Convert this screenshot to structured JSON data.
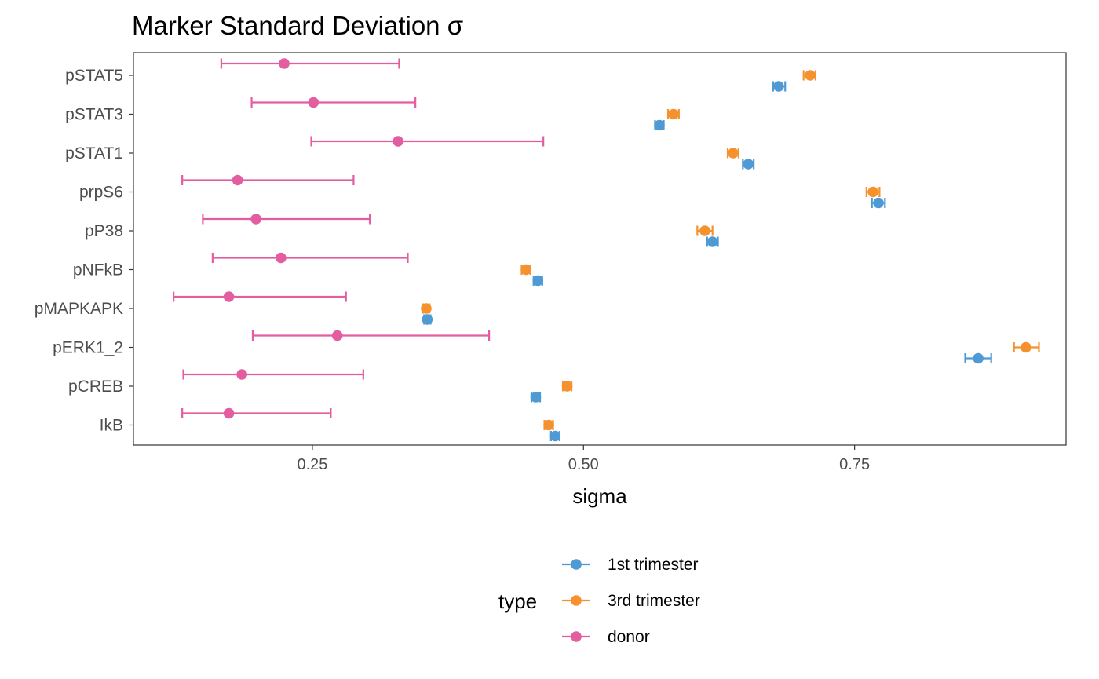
{
  "chart_data": {
    "type": "scatter",
    "title": "Marker Standard Deviation σ",
    "xlabel": "sigma",
    "ylabel": "",
    "xlim": [
      0.085,
      0.945
    ],
    "xticks": [
      0.25,
      0.5,
      0.75
    ],
    "xtick_labels": [
      "0.25",
      "0.50",
      "0.75"
    ],
    "categories": [
      "pSTAT5",
      "pSTAT3",
      "pSTAT1",
      "prpS6",
      "pP38",
      "pNFkB",
      "pMAPKAPK",
      "pERK1_2",
      "pCREB",
      "IkB"
    ],
    "grid": false,
    "legend_position": "bottom",
    "legend_title": "type",
    "series": [
      {
        "name": "1st trimester",
        "color": "#4e9ad5",
        "values": [
          0.68,
          0.57,
          0.652,
          0.772,
          0.619,
          0.458,
          0.356,
          0.864,
          0.456,
          0.474
        ],
        "lower": [
          0.675,
          0.566,
          0.647,
          0.766,
          0.614,
          0.454,
          0.353,
          0.852,
          0.452,
          0.47
        ],
        "upper": [
          0.686,
          0.574,
          0.657,
          0.778,
          0.624,
          0.462,
          0.359,
          0.876,
          0.46,
          0.478
        ]
      },
      {
        "name": "3rd trimester",
        "color": "#f5922e",
        "values": [
          0.709,
          0.583,
          0.638,
          0.767,
          0.612,
          0.447,
          0.355,
          0.908,
          0.485,
          0.468
        ],
        "lower": [
          0.703,
          0.578,
          0.633,
          0.761,
          0.605,
          0.443,
          0.352,
          0.897,
          0.481,
          0.464
        ],
        "upper": [
          0.714,
          0.588,
          0.643,
          0.773,
          0.619,
          0.451,
          0.358,
          0.92,
          0.489,
          0.472
        ]
      },
      {
        "name": "donor",
        "color": "#e35ea1",
        "values": [
          0.224,
          0.251,
          0.329,
          0.181,
          0.198,
          0.221,
          0.173,
          0.273,
          0.185,
          0.173
        ],
        "lower": [
          0.166,
          0.194,
          0.249,
          0.13,
          0.149,
          0.158,
          0.122,
          0.195,
          0.131,
          0.13
        ],
        "upper": [
          0.33,
          0.345,
          0.463,
          0.288,
          0.303,
          0.338,
          0.281,
          0.413,
          0.297,
          0.267
        ]
      }
    ]
  }
}
